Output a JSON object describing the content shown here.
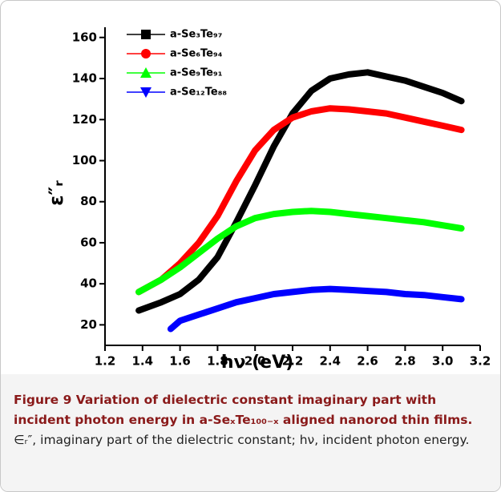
{
  "chart_data": {
    "type": "line",
    "x_label": "hν (eV)",
    "y_label": "ε″ᵣ",
    "xlim": [
      1.2,
      3.2
    ],
    "ylim": [
      10,
      165
    ],
    "xticks": [
      1.2,
      1.4,
      1.6,
      1.8,
      {
        "value": 2,
        "label": "2.0"
      },
      2.2,
      2.4,
      2.6,
      2.8,
      {
        "value": 3,
        "label": "3.0"
      },
      3.2
    ],
    "yticks": [
      20,
      40,
      60,
      80,
      100,
      120,
      140,
      160
    ],
    "series": [
      {
        "name": "a-Se₃Te₉₇",
        "color": "#000000",
        "marker": "square",
        "x": [
          1.38,
          1.5,
          1.6,
          1.7,
          1.8,
          1.9,
          2.0,
          2.1,
          2.2,
          2.3,
          2.4,
          2.5,
          2.6,
          2.7,
          2.8,
          2.9,
          3.0,
          3.1
        ],
        "values": [
          27,
          31,
          35,
          42,
          53,
          70,
          88,
          107,
          123,
          134,
          140,
          142,
          143,
          141,
          139,
          136,
          133,
          129
        ]
      },
      {
        "name": "a-Se₆Te₉₄",
        "color": "#ff0000",
        "marker": "circle",
        "x": [
          1.38,
          1.5,
          1.6,
          1.7,
          1.8,
          1.9,
          2.0,
          2.1,
          2.2,
          2.3,
          2.4,
          2.5,
          2.6,
          2.7,
          2.8,
          2.9,
          3.0,
          3.1
        ],
        "values": [
          36,
          42,
          50,
          60,
          73,
          90,
          105,
          115,
          121,
          124,
          125.5,
          125,
          124,
          123,
          121,
          119,
          117,
          115
        ]
      },
      {
        "name": "a-Se₉Te₉₁",
        "color": "#00ff00",
        "marker": "triangle-up",
        "x": [
          1.38,
          1.5,
          1.6,
          1.7,
          1.8,
          1.9,
          2.0,
          2.1,
          2.2,
          2.3,
          2.4,
          2.5,
          2.6,
          2.7,
          2.8,
          2.9,
          3.0,
          3.1
        ],
        "values": [
          36,
          42,
          48,
          55,
          62,
          68,
          72,
          74,
          75,
          75.5,
          75,
          74,
          73,
          72,
          71,
          70,
          68.5,
          67
        ]
      },
      {
        "name": "a-Se₁₂Te₈₈",
        "color": "#0000ff",
        "marker": "triangle-down",
        "x": [
          1.55,
          1.6,
          1.7,
          1.8,
          1.9,
          2.0,
          2.1,
          2.2,
          2.3,
          2.4,
          2.5,
          2.6,
          2.7,
          2.8,
          2.9,
          3.0,
          3.1
        ],
        "values": [
          18,
          22,
          25,
          28,
          31,
          33,
          35,
          36,
          37,
          37.5,
          37,
          36.5,
          36,
          35,
          34.5,
          33.5,
          32.5
        ]
      }
    ]
  },
  "caption": {
    "title": "Figure 9 Variation of dielectric constant imaginary part with incident photon energy in a-SeₓTe₁₀₀₋ₓ aligned nanorod thin films.",
    "text": "∈ᵣ″, imaginary part of the dielectric constant; hν, incident photon energy."
  }
}
